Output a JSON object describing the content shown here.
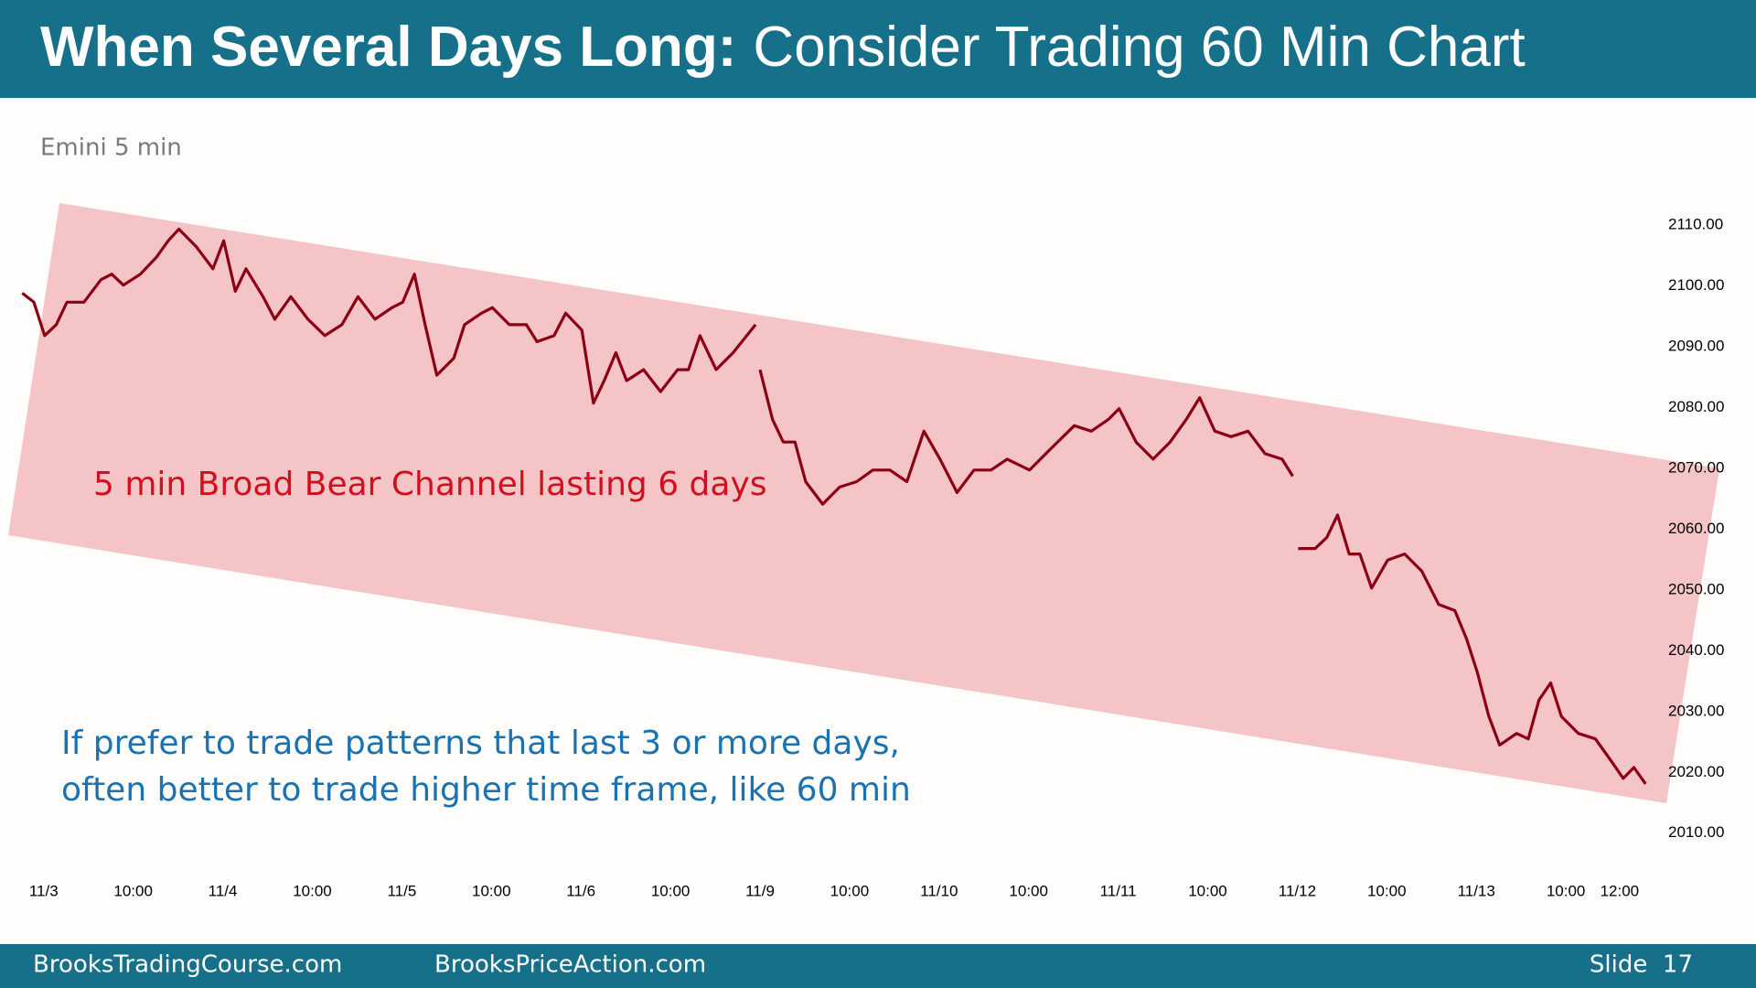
{
  "header": {
    "title_bold": "When Several Days Long:",
    "title_rest": "Consider Trading 60 Min Chart"
  },
  "footer": {
    "left": "BrooksTradingCourse.com",
    "center": "BrooksPriceAction.com",
    "right": "Slide  17"
  },
  "chart_data": {
    "type": "line",
    "title": "Emini 5 min",
    "annotations": [
      "5 min Broad Bear Channel lasting 6 days",
      "If prefer to trade patterns that last 3 or more days,",
      "often better to trade higher time frame, like 60 min"
    ],
    "x": [
      -0.24,
      -0.11,
      0.01,
      0.14,
      0.26,
      0.45,
      0.64,
      0.76,
      0.89,
      1.08,
      1.26,
      1.39,
      1.51,
      1.7,
      1.89,
      2.01,
      2.14,
      2.26,
      2.45,
      2.58,
      2.76,
      2.95,
      3.14,
      3.33,
      3.51,
      3.7,
      3.89,
      4.01,
      4.14,
      4.26,
      4.39,
      4.58,
      4.7,
      4.89,
      5.01,
      5.2,
      5.39,
      5.51,
      5.7,
      5.83,
      6.01,
      6.14,
      6.26,
      6.39,
      6.51,
      6.7,
      6.89,
      7.08,
      7.2,
      7.33,
      7.51,
      7.7,
      7.95,
      null,
      8.0,
      8.14,
      8.26,
      8.39,
      8.51,
      8.7,
      8.89,
      9.08,
      9.26,
      9.45,
      9.64,
      9.83,
      10.01,
      10.2,
      10.39,
      10.58,
      10.76,
      11.01,
      11.26,
      11.51,
      11.7,
      11.89,
      12.01,
      12.2,
      12.39,
      12.58,
      12.76,
      12.91,
      13.08,
      13.26,
      13.45,
      13.64,
      13.83,
      13.95,
      null,
      14.01,
      14.2,
      14.33,
      14.45,
      14.58,
      14.7,
      14.83,
      15.01,
      15.2,
      15.39,
      15.58,
      15.76,
      15.89,
      16.01,
      16.14,
      16.26,
      16.45,
      16.58,
      16.7,
      16.83,
      16.95,
      17.14,
      17.33,
      17.51,
      17.64,
      17.76,
      17.89
    ],
    "series": [
      {
        "color": "#8b0012",
        "values": [
          2098.8,
          2097.3,
          2091.8,
          2093.6,
          2097.3,
          2097.3,
          2101.0,
          2101.9,
          2100.1,
          2101.9,
          2104.7,
          2107.4,
          2109.3,
          2106.5,
          2102.8,
          2107.4,
          2099.1,
          2102.8,
          2098.2,
          2094.5,
          2098.2,
          2094.5,
          2091.8,
          2093.6,
          2098.2,
          2094.5,
          2096.4,
          2097.3,
          2101.9,
          2093.6,
          2085.3,
          2088.1,
          2093.6,
          2095.5,
          2096.4,
          2093.6,
          2093.6,
          2090.8,
          2091.8,
          2095.5,
          2092.7,
          2080.7,
          2084.4,
          2089.0,
          2084.4,
          2086.2,
          2082.6,
          2086.2,
          2086.2,
          2091.8,
          2086.2,
          2089.0,
          2093.6,
          null,
          2086.2,
          2078.0,
          2074.3,
          2074.3,
          2067.8,
          2064.1,
          2066.9,
          2067.8,
          2069.7,
          2069.7,
          2067.8,
          2076.1,
          2071.5,
          2066.0,
          2069.7,
          2069.7,
          2071.5,
          2069.7,
          2073.4,
          2077.0,
          2076.1,
          2078.0,
          2079.8,
          2074.3,
          2071.5,
          2074.3,
          2078.0,
          2081.6,
          2076.1,
          2075.2,
          2076.1,
          2072.4,
          2071.5,
          2068.7,
          null,
          2056.8,
          2056.8,
          2058.6,
          2062.3,
          2055.9,
          2055.9,
          2050.3,
          2054.9,
          2055.9,
          2053.1,
          2047.6,
          2046.6,
          2042.0,
          2036.5,
          2029.2,
          2024.5,
          2026.4,
          2025.5,
          2031.9,
          2034.7,
          2029.2,
          2026.4,
          2025.5,
          2021.8,
          2019.0,
          2020.8,
          2018.1
        ]
      }
    ],
    "xlim": [
      -0.25,
      18.2
    ],
    "xticks": [
      {
        "value": 0,
        "label": "11/3"
      },
      {
        "value": 1,
        "label": "10:00"
      },
      {
        "value": 2,
        "label": "11/4"
      },
      {
        "value": 3,
        "label": "10:00"
      },
      {
        "value": 4,
        "label": "11/5"
      },
      {
        "value": 5,
        "label": "10:00"
      },
      {
        "value": 6,
        "label": "11/6"
      },
      {
        "value": 7,
        "label": "10:00"
      },
      {
        "value": 8,
        "label": "11/9"
      },
      {
        "value": 9,
        "label": "10:00"
      },
      {
        "value": 10,
        "label": "11/10"
      },
      {
        "value": 11,
        "label": "10:00"
      },
      {
        "value": 12,
        "label": "11/11"
      },
      {
        "value": 13,
        "label": "10:00"
      },
      {
        "value": 14,
        "label": "11/12"
      },
      {
        "value": 15,
        "label": "10:00"
      },
      {
        "value": 16,
        "label": "11/13"
      },
      {
        "value": 17,
        "label": "10:00"
      },
      {
        "value": 17.6,
        "label": "12:00"
      }
    ],
    "ylim": [
      2005,
      2116
    ],
    "yticks": [
      {
        "value": 2010,
        "label": "2010.00"
      },
      {
        "value": 2020,
        "label": "2020.00"
      },
      {
        "value": 2030,
        "label": "2030.00"
      },
      {
        "value": 2040,
        "label": "2040.00"
      },
      {
        "value": 2050,
        "label": "2050.00"
      },
      {
        "value": 2060,
        "label": "2060.00"
      },
      {
        "value": 2070,
        "label": "2070.00"
      },
      {
        "value": 2080,
        "label": "2080.00"
      },
      {
        "value": 2090,
        "label": "2090.00"
      },
      {
        "value": 2100,
        "label": "2100.00"
      },
      {
        "value": 2110,
        "label": "2110.00"
      }
    ]
  }
}
